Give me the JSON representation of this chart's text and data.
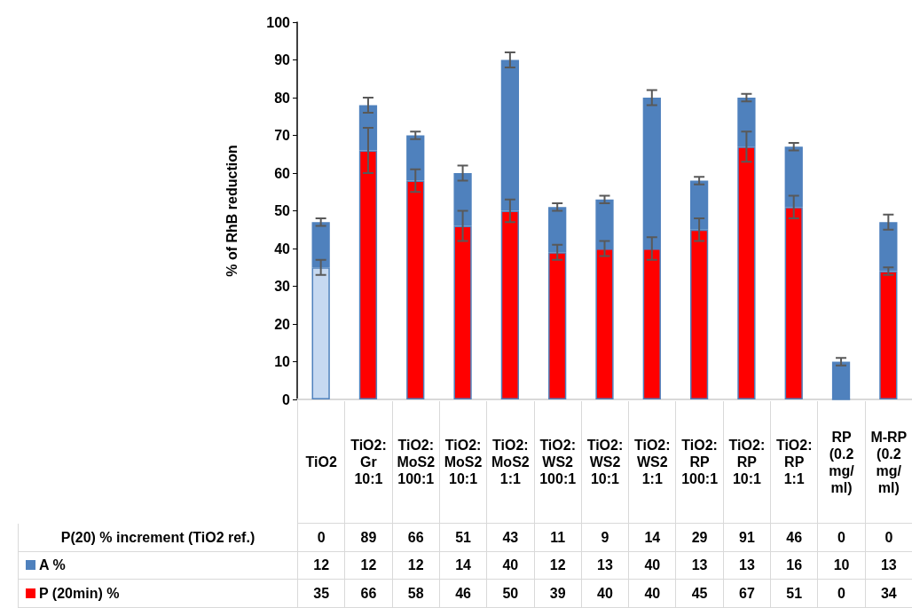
{
  "chart_data": {
    "type": "bar",
    "stacked": true,
    "ylabel": "% of RhB reduction",
    "categories": [
      "TiO2",
      "TiO2: Gr 10:1",
      "TiO2: MoS2 100:1",
      "TiO2: MoS2 10:1",
      "TiO2: MoS2 1:1",
      "TiO2: WS2 100:1",
      "TiO2: WS2 10:1",
      "TiO2: WS2 1:1",
      "TiO2: RP 100:1",
      "TiO2: RP 10:1",
      "TiO2: RP 1:1",
      "RP (0.2 mg/ ml)",
      "M-RP (0.2 mg/ ml)"
    ],
    "series": [
      {
        "name": "P (20min) %",
        "color": "#ff0000",
        "colors": [
          "#c6d9f1",
          "#ff0000",
          "#ff0000",
          "#ff0000",
          "#ff0000",
          "#ff0000",
          "#ff0000",
          "#ff0000",
          "#ff0000",
          "#ff0000",
          "#ff0000",
          "#ff0000",
          "#ff0000"
        ],
        "values": [
          35,
          66,
          58,
          46,
          50,
          39,
          40,
          40,
          45,
          67,
          51,
          0,
          34
        ],
        "errors": [
          2,
          6,
          3,
          4,
          3,
          2,
          2,
          3,
          3,
          4,
          3,
          null,
          1
        ]
      },
      {
        "name": "A %",
        "color": "#4f81bd",
        "values": [
          12,
          12,
          12,
          14,
          40,
          12,
          13,
          40,
          13,
          13,
          16,
          10,
          13
        ],
        "errors": [
          1,
          2,
          1,
          2,
          2,
          1,
          1,
          2,
          1,
          1,
          1,
          1,
          2
        ]
      }
    ],
    "annotations": [
      "P(20) %  increment (TiO2 ref.)",
      "0",
      "89",
      "66",
      "51",
      "43",
      "11",
      "9",
      "14",
      "29",
      "91",
      "46",
      "0",
      "0"
    ],
    "data_labels": true,
    "ylim": [
      0,
      100
    ],
    "yticks": [
      0,
      10,
      20,
      30,
      40,
      50,
      60,
      70,
      80,
      90,
      100
    ],
    "grid": false,
    "legend": "bottom"
  }
}
